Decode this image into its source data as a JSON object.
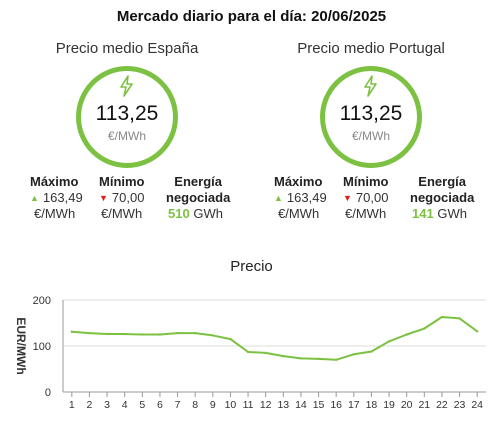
{
  "header": {
    "title": "Mercado diario para el día: 20/06/2025"
  },
  "regions": [
    {
      "label": "Precio medio España",
      "price": "113,25",
      "unit": "€/MWh",
      "max_label": "Máximo",
      "max_value": "163,49",
      "max_unit": "€/MWh",
      "min_label": "Mínimo",
      "min_value": "70,00",
      "min_unit": "€/MWh",
      "energy_label_1": "Energía",
      "energy_label_2": "negociada",
      "energy_value": "510",
      "energy_unit": "GWh"
    },
    {
      "label": "Precio medio Portugal",
      "price": "113,25",
      "unit": "€/MWh",
      "max_label": "Máximo",
      "max_value": "163,49",
      "max_unit": "€/MWh",
      "min_label": "Mínimo",
      "min_value": "70,00",
      "min_unit": "€/MWh",
      "energy_label_1": "Energía",
      "energy_label_2": "negociada",
      "energy_value": "141",
      "energy_unit": "GWh"
    }
  ],
  "icons": {
    "price": "lightning-bolt-icon",
    "up": "triangle-up-icon",
    "down": "triangle-down-icon"
  },
  "colors": {
    "accent": "#7cc142",
    "down": "#e0201b",
    "axis": "#999999",
    "grid": "#dddddd"
  },
  "chart_data": {
    "type": "line",
    "title": "Precio",
    "xlabel": "",
    "ylabel": "EUR/MWh",
    "x": [
      1,
      2,
      3,
      4,
      5,
      6,
      7,
      8,
      9,
      10,
      11,
      12,
      13,
      14,
      15,
      16,
      17,
      18,
      19,
      20,
      21,
      22,
      23,
      24
    ],
    "ylim": [
      0,
      200
    ],
    "yticks": [
      0,
      100,
      200
    ],
    "grid": true,
    "series": [
      {
        "values": [
          131,
          128,
          126,
          126,
          125,
          125,
          128,
          128,
          123,
          115,
          87,
          85,
          78,
          73,
          72,
          70,
          82,
          88,
          110,
          125,
          138,
          163,
          160,
          132
        ]
      }
    ]
  }
}
